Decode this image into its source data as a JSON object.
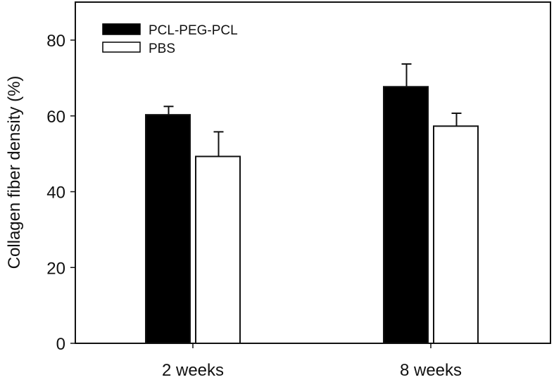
{
  "chart_data": {
    "type": "bar",
    "title": "",
    "xlabel": "",
    "ylabel": "Collagen fiber density (%)",
    "ylim": [
      0,
      90
    ],
    "yticks": [
      0,
      20,
      40,
      60,
      80
    ],
    "ytick_labels": [
      "0",
      "20",
      "40",
      "60",
      "80"
    ],
    "categories": [
      "2 weeks",
      "8 weeks"
    ],
    "series": [
      {
        "name": "PCL-PEG-PCL",
        "fill": "#000000",
        "values": [
          60.3,
          67.7
        ],
        "errors": [
          2.2,
          6.0
        ]
      },
      {
        "name": "PBS",
        "fill": "#ffffff",
        "values": [
          49.3,
          57.3
        ],
        "errors": [
          6.5,
          3.4
        ]
      }
    ],
    "legend_position": "top-left",
    "grid": false
  }
}
